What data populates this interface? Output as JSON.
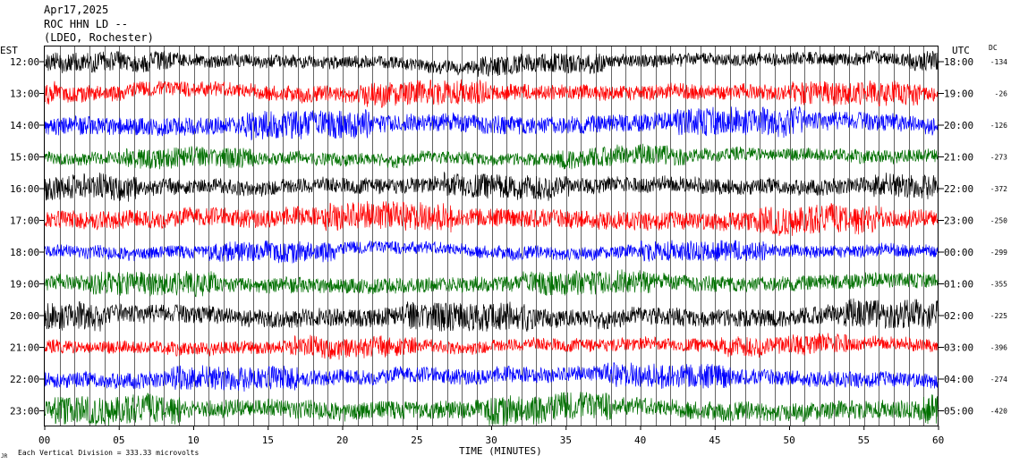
{
  "header": {
    "date": "Apr17,2025",
    "station": "ROC HHN LD --",
    "location": "(LDEO, Rochester)"
  },
  "labels": {
    "left_tz": "EST",
    "right_tz": "UTC",
    "dc": "DC",
    "xlabel": "TIME (MINUTES)",
    "footnote": "Each Vertical Division =  333.33 microvolts",
    "corner": "JR"
  },
  "chart_data": {
    "type": "line",
    "title": "",
    "xlabel": "TIME (MINUTES)",
    "xlim": [
      0,
      60
    ],
    "x_ticks": [
      "00",
      "05",
      "10",
      "15",
      "20",
      "25",
      "30",
      "35",
      "40",
      "45",
      "50",
      "55",
      "60"
    ],
    "grid": "vertical-minutes",
    "colors": [
      "#000000",
      "#ff0000",
      "#0000ff",
      "#007000"
    ],
    "rows": [
      {
        "est": "12:00",
        "utc": "18:00",
        "dc": "-134"
      },
      {
        "est": "13:00",
        "utc": "19:00",
        "dc": "-26"
      },
      {
        "est": "14:00",
        "utc": "20:00",
        "dc": "-126"
      },
      {
        "est": "15:00",
        "utc": "21:00",
        "dc": "-273"
      },
      {
        "est": "16:00",
        "utc": "22:00",
        "dc": "-372"
      },
      {
        "est": "17:00",
        "utc": "23:00",
        "dc": "-250"
      },
      {
        "est": "18:00",
        "utc": "00:00",
        "dc": "-299"
      },
      {
        "est": "19:00",
        "utc": "01:00",
        "dc": "-355"
      },
      {
        "est": "20:00",
        "utc": "02:00",
        "dc": "-225"
      },
      {
        "est": "21:00",
        "utc": "03:00",
        "dc": "-396"
      },
      {
        "est": "22:00",
        "utc": "04:00",
        "dc": "-274"
      },
      {
        "est": "23:00",
        "utc": "05:00",
        "dc": "-420"
      }
    ]
  }
}
